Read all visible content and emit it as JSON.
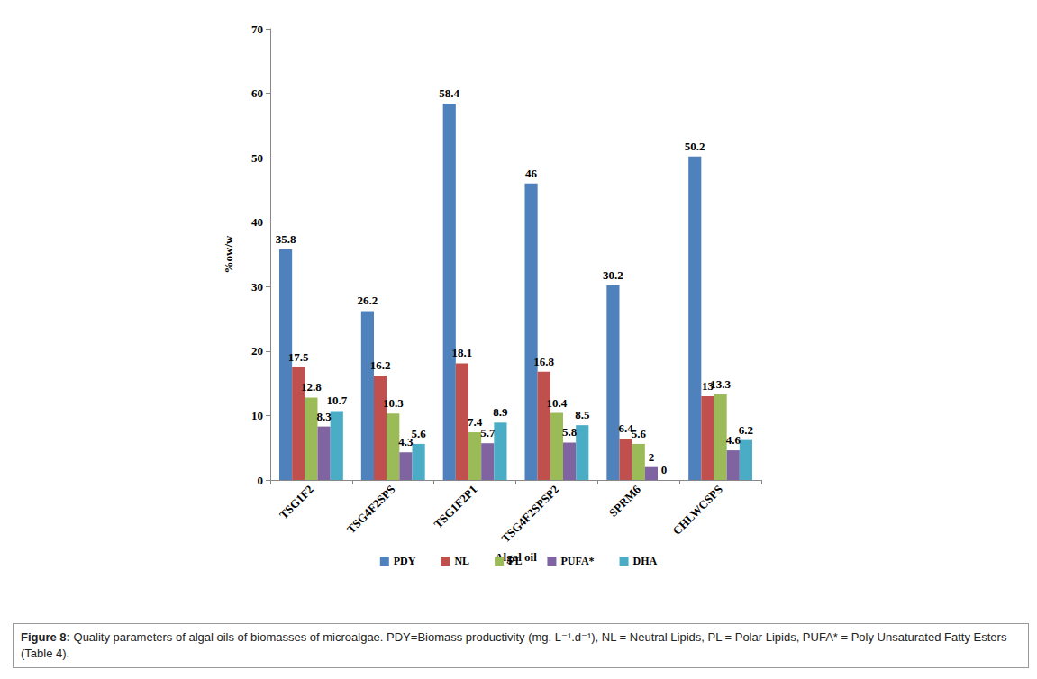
{
  "chart_data": {
    "type": "bar",
    "caption": "Figure 8: Quality parameters of algal oils of biomasses of microalgae. PDY=Biomass productivity (mg. L⁻¹.d⁻¹), NL = Neutral Lipids, PL = Polar Lipids, PUFA* = Poly Unsaturated Fatty Esters (Table 4).",
    "x_label": "Algal oil",
    "y_label": "%ow/w",
    "categories": [
      "TSG1F2",
      "TSG4F2SPS",
      "TSG1F2P1",
      "TSG4F2SPSP2",
      "SPRM6",
      "CHLWCSPS"
    ],
    "series": [
      {
        "name": "PDY",
        "color": "#4F81BD",
        "values": [
          35.8,
          26.2,
          58.4,
          46,
          30.2,
          50.2
        ]
      },
      {
        "name": "NL",
        "color": "#C0504D",
        "values": [
          17.5,
          16.2,
          18.1,
          16.8,
          6.4,
          13
        ]
      },
      {
        "name": "PL",
        "color": "#9BBB59",
        "values": [
          12.8,
          10.3,
          7.4,
          10.4,
          5.6,
          13.3
        ]
      },
      {
        "name": "PUFA*",
        "color": "#8064A2",
        "values": [
          8.3,
          4.3,
          5.7,
          5.8,
          2,
          4.6
        ]
      },
      {
        "name": "DHA",
        "color": "#4BACC6",
        "values": [
          10.7,
          5.6,
          8.9,
          8.5,
          0,
          6.2
        ]
      }
    ],
    "ylim": [
      0,
      70
    ],
    "yticks": [
      0,
      10,
      20,
      30,
      40,
      50,
      60,
      70
    ],
    "grid": false,
    "legend": "bottom",
    "data_labels": true
  }
}
